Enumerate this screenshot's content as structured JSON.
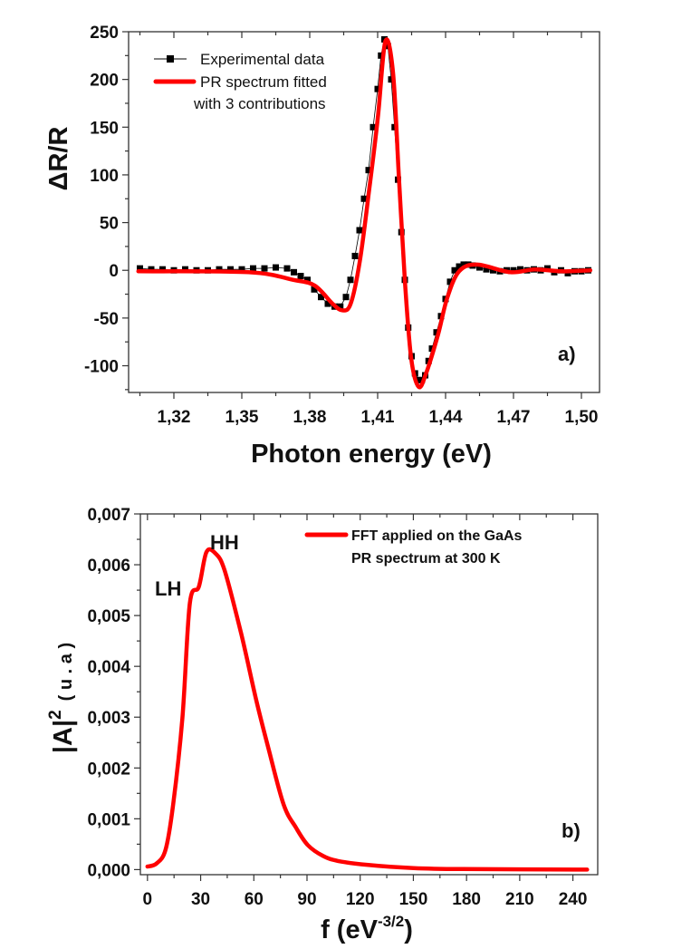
{
  "colors": {
    "fit": "#ff0000",
    "experimental": "#000000",
    "fft": "#ff0000"
  },
  "chart_data": [
    {
      "type": "line",
      "panel_label": "a)",
      "xlabel": "Photon energy (eV)",
      "ylabel": "ΔR/R",
      "xlim": [
        1.3,
        1.508
      ],
      "ylim": [
        -128,
        250
      ],
      "x_ticks": [
        "1,32",
        "1,35",
        "1,38",
        "1,41",
        "1,44",
        "1,47",
        "1,50"
      ],
      "y_ticks": [
        "250",
        "200",
        "150",
        "100",
        "50",
        "0",
        "-50",
        "-100"
      ],
      "grid": false,
      "legend_position": "top-left",
      "series": [
        {
          "name": "Experimental data",
          "style": "scatter-square-markers",
          "x": [
            1.305,
            1.31,
            1.315,
            1.32,
            1.325,
            1.33,
            1.335,
            1.34,
            1.345,
            1.35,
            1.355,
            1.36,
            1.365,
            1.37,
            1.373,
            1.376,
            1.379,
            1.382,
            1.385,
            1.388,
            1.391,
            1.3935,
            1.396,
            1.398,
            1.4,
            1.402,
            1.404,
            1.406,
            1.408,
            1.41,
            1.4115,
            1.413,
            1.4145,
            1.416,
            1.4175,
            1.419,
            1.4205,
            1.422,
            1.4235,
            1.425,
            1.4265,
            1.428,
            1.4295,
            1.431,
            1.4325,
            1.434,
            1.436,
            1.438,
            1.44,
            1.442,
            1.444,
            1.446,
            1.448,
            1.45,
            1.452,
            1.455,
            1.458,
            1.461,
            1.464,
            1.467,
            1.47,
            1.473,
            1.476,
            1.479,
            1.482,
            1.485,
            1.488,
            1.491,
            1.494,
            1.497,
            1.5,
            1.503
          ],
          "y": [
            2,
            1,
            1,
            0,
            1,
            0,
            0,
            1,
            1,
            1,
            2,
            2,
            3,
            2,
            -2,
            -6,
            -10,
            -20,
            -28,
            -35,
            -38,
            -38,
            -28,
            -10,
            15,
            42,
            75,
            105,
            150,
            190,
            225,
            242,
            235,
            200,
            150,
            95,
            40,
            -10,
            -60,
            -90,
            -108,
            -115,
            -115,
            -110,
            -95,
            -82,
            -65,
            -48,
            -30,
            -12,
            0,
            4,
            6,
            6,
            5,
            3,
            1,
            0,
            -1,
            0,
            0,
            1,
            0,
            1,
            0,
            2,
            -2,
            0,
            -3,
            -1,
            -1,
            0
          ]
        },
        {
          "name": "PR spectrum fitted with 3 contributions",
          "legend_lines": [
            "PR spectrum fitted",
            "with 3 contributions"
          ],
          "style": "line",
          "x": [
            1.3043,
            1.3529,
            1.3728,
            1.3822,
            1.3901,
            1.3944,
            1.3981,
            1.4021,
            1.4061,
            1.4101,
            1.4134,
            1.4168,
            1.4194,
            1.4221,
            1.4248,
            1.4281,
            1.4314,
            1.4367,
            1.4407,
            1.446,
            1.454,
            1.4686,
            1.4793,
            1.4913,
            1.5039
          ],
          "y": [
            -1,
            -2,
            -10,
            -16,
            -35,
            -42,
            -35,
            9,
            81,
            160,
            240,
            207,
            97,
            -13,
            -92,
            -122,
            -108,
            -67,
            -29,
            -1,
            6,
            -2,
            1,
            -1,
            0
          ]
        }
      ]
    },
    {
      "type": "line",
      "panel_label": "b)",
      "xlabel": "f (eV",
      "xlabel_sup": "-3/2",
      "xlabel_close": ")",
      "ylabel": "|A|",
      "ylabel_sup": "2",
      "ylabel_unit": "( u . a )",
      "xlim": [
        -4,
        254
      ],
      "ylim": [
        -0.0001,
        0.007
      ],
      "x_ticks": [
        "0",
        "30",
        "60",
        "90",
        "120",
        "150",
        "180",
        "210",
        "240"
      ],
      "y_ticks": [
        "0,000",
        "0,001",
        "0,002",
        "0,003",
        "0,004",
        "0,005",
        "0,006",
        "0,007"
      ],
      "grid": false,
      "legend_position": "top-right",
      "annotations": [
        "LH",
        "HH"
      ],
      "series": [
        {
          "name": "FFT applied on the GaAs PR spectrum at 300 K",
          "legend_lines": [
            "FFT applied on the GaAs",
            "PR spectrum at 300 K"
          ],
          "x": [
            0,
            5.1,
            10.2,
            14.5,
            19.7,
            23.9,
            29,
            33.3,
            38.4,
            43.5,
            52.9,
            61.4,
            68.3,
            76.8,
            83.7,
            90.5,
            99,
            107.5,
            124.6,
            150.2,
            177.5,
            248
          ],
          "y": [
            6e-05,
            0.00012,
            0.00039,
            0.00128,
            0.00298,
            0.00524,
            0.00557,
            0.00625,
            0.00622,
            0.00589,
            0.00464,
            0.00333,
            0.00238,
            0.00128,
            0.00083,
            0.00048,
            0.00027,
            0.00017,
            9e-05,
            3e-05,
            1e-05,
            0.0
          ]
        }
      ]
    }
  ]
}
